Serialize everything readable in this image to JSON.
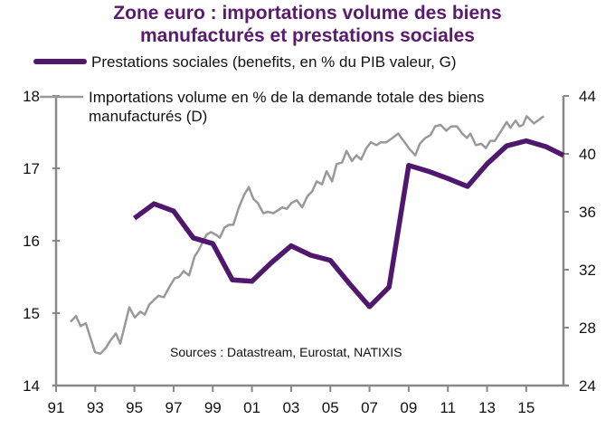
{
  "chart_data": {
    "type": "line",
    "title": "Zone euro : importations volume des biens manufacturés et prestations sociales",
    "title_lines": [
      "Zone euro : importations volume des biens",
      "manufacturés et prestations sociales"
    ],
    "source": "Sources : Datastream, Eurostat, NATIXIS",
    "xlabel": "",
    "ylabel_left": "",
    "ylabel_right": "",
    "x_range": [
      1991,
      2016.9
    ],
    "x_ticks": [
      1991,
      1993,
      1995,
      1997,
      1999,
      2001,
      2003,
      2005,
      2007,
      2009,
      2011,
      2013,
      2015
    ],
    "x_tick_labels": [
      "91",
      "93",
      "95",
      "97",
      "99",
      "01",
      "03",
      "05",
      "07",
      "09",
      "11",
      "13",
      "15"
    ],
    "ylim_left": [
      14,
      18
    ],
    "y_ticks_left": [
      14,
      15,
      16,
      17,
      18
    ],
    "y_tick_labels_left": [
      "14",
      "15",
      "16",
      "17",
      "18"
    ],
    "ylim_right": [
      24,
      44
    ],
    "y_ticks_right": [
      24,
      28,
      32,
      36,
      40,
      44
    ],
    "y_tick_labels_right": [
      "24",
      "28",
      "32",
      "36",
      "40",
      "44"
    ],
    "grid": false,
    "legend_position": "top-left",
    "colors": {
      "title": "#5a1a6e",
      "benefits": "#4f176e",
      "imports": "#999999",
      "axis": "#888888"
    },
    "series": [
      {
        "name": "Prestations sociales (benefits, en % du PIB valeur, G)",
        "axis": "left",
        "x": [
          1995,
          1996,
          1997,
          1998,
          1999,
          2000,
          2001,
          2002,
          2003,
          2004,
          2005,
          2006,
          2007,
          2008,
          2009,
          2010,
          2011,
          2012,
          2013,
          2014,
          2015,
          2016,
          2016.9
        ],
        "values": [
          16.31,
          16.51,
          16.41,
          16.04,
          15.96,
          15.46,
          15.44,
          15.7,
          15.93,
          15.8,
          15.73,
          15.4,
          15.09,
          15.36,
          17.04,
          16.96,
          16.86,
          16.75,
          17.06,
          17.31,
          17.38,
          17.3,
          17.18
        ]
      },
      {
        "name": "Importations volume en % de la demande totale des biens manufacturés (D)",
        "axis": "right",
        "x": [
          1991.74,
          1992.02,
          1992.25,
          1992.52,
          1992.99,
          1993.26,
          1993.54,
          1993.77,
          1994.05,
          1994.28,
          1994.74,
          1995.02,
          1995.3,
          1995.53,
          1995.76,
          1996.22,
          1996.5,
          1996.82,
          1997.05,
          1997.28,
          1997.51,
          1997.79,
          1998.07,
          1998.3,
          1998.67,
          1998.9,
          1999.18,
          1999.36,
          1999.59,
          1999.82,
          2000.05,
          2000.33,
          2000.61,
          2000.84,
          2001.07,
          2001.3,
          2001.58,
          2001.81,
          2002.09,
          2002.32,
          2002.55,
          2002.78,
          2003.01,
          2003.29,
          2003.56,
          2003.84,
          2004.07,
          2004.3,
          2004.58,
          2004.81,
          2005.09,
          2005.32,
          2005.6,
          2005.83,
          2006.1,
          2006.33,
          2006.57,
          2006.84,
          2007.07,
          2007.35,
          2007.58,
          2007.86,
          2008.18,
          2008.46,
          2008.74,
          2009.06,
          2009.34,
          2009.57,
          2009.85,
          2010.12,
          2010.35,
          2010.63,
          2010.91,
          2011.18,
          2011.46,
          2011.74,
          2011.97,
          2012.15,
          2012.43,
          2012.71,
          2012.94,
          2013.17,
          2013.4,
          2013.63,
          2013.82,
          2014.0,
          2014.19,
          2014.46,
          2014.65,
          2014.83,
          2015.02,
          2015.39,
          2015.9
        ],
        "values": [
          28.4,
          28.8,
          28.1,
          28.3,
          26.3,
          26.2,
          26.6,
          27.1,
          27.6,
          26.9,
          29.4,
          28.7,
          29.1,
          28.9,
          29.6,
          30.2,
          30.1,
          30.9,
          31.4,
          31.5,
          31.9,
          31.6,
          32.9,
          33.4,
          34.4,
          34.6,
          34.4,
          34.2,
          34.9,
          35.1,
          35.1,
          36.3,
          37.2,
          37.7,
          36.9,
          36.6,
          35.9,
          36.0,
          35.9,
          36.1,
          36.3,
          36.2,
          36.6,
          36.8,
          36.3,
          37.1,
          37.4,
          38.1,
          37.9,
          38.8,
          38.1,
          39.3,
          39.4,
          40.2,
          39.5,
          39.9,
          39.6,
          40.4,
          40.8,
          40.6,
          40.8,
          40.8,
          41.1,
          41.4,
          40.9,
          40.3,
          39.9,
          40.7,
          41.1,
          41.3,
          41.9,
          42.0,
          41.6,
          41.9,
          41.9,
          41.4,
          41.1,
          41.4,
          40.6,
          40.7,
          40.4,
          40.9,
          40.9,
          41.4,
          41.8,
          42.2,
          41.8,
          42.3,
          41.9,
          42.0,
          42.6,
          42.1,
          42.6
        ]
      }
    ]
  }
}
